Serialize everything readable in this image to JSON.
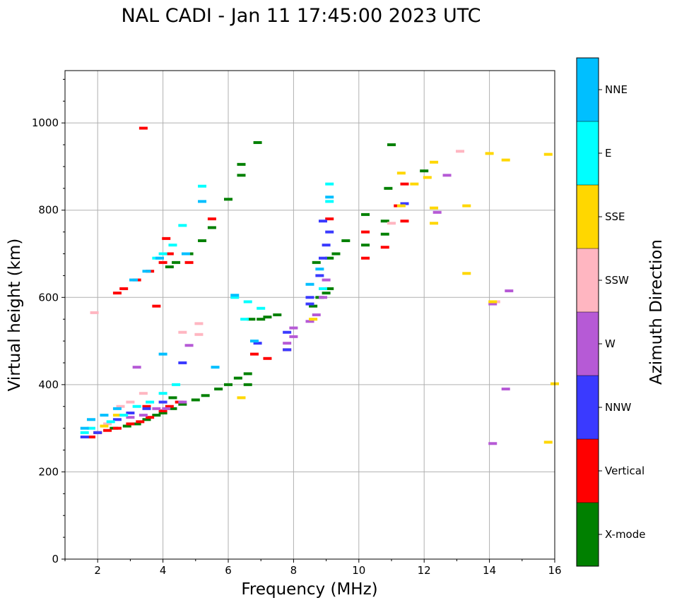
{
  "chart_data": {
    "type": "scatter",
    "title": "NAL CADI - Jan 11 17:45:00 2023 UTC",
    "xlabel": "Frequency (MHz)",
    "ylabel": "Virtual height (km)",
    "xlim": [
      1,
      16
    ],
    "ylim": [
      0,
      1120
    ],
    "xticks": [
      2,
      4,
      6,
      8,
      10,
      12,
      14,
      16
    ],
    "yticks": [
      0,
      200,
      400,
      600,
      800,
      1000
    ],
    "grid": true,
    "colorbar": {
      "label": "Azimuth Direction",
      "categories": [
        {
          "name": "X-mode",
          "color": "#008000"
        },
        {
          "name": "Vertical",
          "color": "#ff0000"
        },
        {
          "name": "NNW",
          "color": "#3a3aff"
        },
        {
          "name": "W",
          "color": "#b65ad6"
        },
        {
          "name": "SSW",
          "color": "#ffb6c1"
        },
        {
          "name": "SSE",
          "color": "#ffd700"
        },
        {
          "name": "E",
          "color": "#00ffff"
        },
        {
          "name": "NNE",
          "color": "#00bfff"
        }
      ]
    },
    "series": [
      {
        "name": "X-mode",
        "points": [
          [
            2.5,
            300
          ],
          [
            2.9,
            305
          ],
          [
            3.2,
            310
          ],
          [
            3.5,
            320
          ],
          [
            3.8,
            330
          ],
          [
            4.0,
            335
          ],
          [
            4.3,
            345
          ],
          [
            4.6,
            355
          ],
          [
            5.0,
            365
          ],
          [
            5.3,
            375
          ],
          [
            5.7,
            390
          ],
          [
            6.0,
            400
          ],
          [
            6.3,
            415
          ],
          [
            6.6,
            425
          ],
          [
            6.6,
            400
          ],
          [
            7.0,
            550
          ],
          [
            7.2,
            555
          ],
          [
            7.5,
            560
          ],
          [
            8.6,
            580
          ],
          [
            8.8,
            600
          ],
          [
            9.0,
            610
          ],
          [
            9.1,
            620
          ],
          [
            9.1,
            690
          ],
          [
            8.7,
            680
          ],
          [
            9.3,
            700
          ],
          [
            9.6,
            730
          ],
          [
            10.2,
            720
          ],
          [
            10.2,
            790
          ],
          [
            10.8,
            745
          ],
          [
            10.8,
            775
          ],
          [
            10.9,
            850
          ],
          [
            11.0,
            950
          ],
          [
            12.0,
            890
          ],
          [
            6.0,
            825
          ],
          [
            5.2,
            730
          ],
          [
            5.5,
            760
          ],
          [
            4.2,
            670
          ],
          [
            4.4,
            680
          ],
          [
            4.8,
            700
          ],
          [
            6.4,
            880
          ],
          [
            6.4,
            905
          ],
          [
            6.9,
            955
          ],
          [
            6.7,
            550
          ],
          [
            4.3,
            370
          ]
        ]
      },
      {
        "name": "Vertical",
        "points": [
          [
            1.8,
            280
          ],
          [
            2.0,
            290
          ],
          [
            2.3,
            295
          ],
          [
            2.6,
            300
          ],
          [
            3.0,
            310
          ],
          [
            3.3,
            315
          ],
          [
            3.6,
            325
          ],
          [
            4.0,
            340
          ],
          [
            4.2,
            350
          ],
          [
            4.5,
            360
          ],
          [
            3.5,
            350
          ],
          [
            2.6,
            610
          ],
          [
            2.8,
            620
          ],
          [
            3.2,
            640
          ],
          [
            3.6,
            660
          ],
          [
            4.0,
            680
          ],
          [
            4.2,
            700
          ],
          [
            4.1,
            735
          ],
          [
            5.5,
            780
          ],
          [
            6.8,
            470
          ],
          [
            7.2,
            460
          ],
          [
            7.8,
            480
          ],
          [
            9.1,
            780
          ],
          [
            10.2,
            690
          ],
          [
            10.2,
            750
          ],
          [
            10.8,
            715
          ],
          [
            11.2,
            810
          ],
          [
            11.4,
            860
          ],
          [
            11.4,
            775
          ],
          [
            3.4,
            988
          ],
          [
            3.8,
            580
          ],
          [
            4.8,
            680
          ]
        ]
      },
      {
        "name": "NNW",
        "points": [
          [
            1.6,
            280
          ],
          [
            2.0,
            290
          ],
          [
            2.6,
            320
          ],
          [
            3.0,
            335
          ],
          [
            3.5,
            345
          ],
          [
            4.0,
            360
          ],
          [
            7.8,
            520
          ],
          [
            7.8,
            480
          ],
          [
            8.5,
            600
          ],
          [
            8.5,
            585
          ],
          [
            8.8,
            650
          ],
          [
            8.9,
            690
          ],
          [
            9.1,
            750
          ],
          [
            8.9,
            775
          ],
          [
            11.4,
            815
          ],
          [
            9.0,
            720
          ],
          [
            6.9,
            495
          ],
          [
            4.6,
            450
          ]
        ]
      },
      {
        "name": "W",
        "points": [
          [
            3.0,
            325
          ],
          [
            3.4,
            330
          ],
          [
            3.8,
            345
          ],
          [
            4.1,
            345
          ],
          [
            4.6,
            360
          ],
          [
            8.0,
            510
          ],
          [
            8.0,
            530
          ],
          [
            7.8,
            495
          ],
          [
            8.5,
            545
          ],
          [
            8.7,
            560
          ],
          [
            8.9,
            600
          ],
          [
            9.0,
            640
          ],
          [
            12.7,
            880
          ],
          [
            12.4,
            795
          ],
          [
            14.1,
            265
          ],
          [
            14.5,
            390
          ],
          [
            14.6,
            615
          ],
          [
            14.1,
            585
          ],
          [
            4.8,
            490
          ],
          [
            3.2,
            440
          ]
        ]
      },
      {
        "name": "SSW",
        "points": [
          [
            2.3,
            310
          ],
          [
            2.7,
            350
          ],
          [
            3.0,
            360
          ],
          [
            3.4,
            380
          ],
          [
            1.9,
            565
          ],
          [
            5.1,
            540
          ],
          [
            5.1,
            515
          ],
          [
            4.6,
            520
          ],
          [
            13.1,
            935
          ],
          [
            14.2,
            590
          ],
          [
            11.0,
            770
          ]
        ]
      },
      {
        "name": "SSE",
        "points": [
          [
            2.2,
            305
          ],
          [
            2.6,
            330
          ],
          [
            6.4,
            370
          ],
          [
            8.6,
            550
          ],
          [
            11.3,
            885
          ],
          [
            11.3,
            810
          ],
          [
            11.7,
            860
          ],
          [
            12.1,
            875
          ],
          [
            12.3,
            910
          ],
          [
            12.3,
            805
          ],
          [
            12.3,
            770
          ],
          [
            13.3,
            655
          ],
          [
            13.3,
            810
          ],
          [
            14.0,
            930
          ],
          [
            14.5,
            915
          ],
          [
            15.8,
            928
          ],
          [
            15.8,
            268
          ],
          [
            16.0,
            402
          ],
          [
            14.1,
            590
          ]
        ]
      },
      {
        "name": "E",
        "points": [
          [
            1.6,
            290
          ],
          [
            1.8,
            300
          ],
          [
            2.4,
            315
          ],
          [
            2.8,
            330
          ],
          [
            3.2,
            350
          ],
          [
            3.6,
            360
          ],
          [
            4.0,
            380
          ],
          [
            4.4,
            400
          ],
          [
            3.8,
            690
          ],
          [
            4.0,
            700
          ],
          [
            4.3,
            720
          ],
          [
            4.6,
            765
          ],
          [
            5.2,
            855
          ],
          [
            6.2,
            600
          ],
          [
            6.6,
            590
          ],
          [
            7.0,
            575
          ],
          [
            8.9,
            620
          ],
          [
            9.1,
            820
          ],
          [
            9.1,
            860
          ],
          [
            6.5,
            550
          ]
        ]
      },
      {
        "name": "NNE",
        "points": [
          [
            1.6,
            300
          ],
          [
            1.8,
            320
          ],
          [
            2.2,
            330
          ],
          [
            2.6,
            345
          ],
          [
            3.1,
            640
          ],
          [
            3.5,
            660
          ],
          [
            3.9,
            690
          ],
          [
            4.7,
            700
          ],
          [
            5.2,
            820
          ],
          [
            6.8,
            500
          ],
          [
            8.5,
            630
          ],
          [
            9.1,
            830
          ],
          [
            8.8,
            665
          ],
          [
            6.2,
            605
          ],
          [
            4.0,
            470
          ],
          [
            5.6,
            440
          ]
        ]
      }
    ]
  }
}
